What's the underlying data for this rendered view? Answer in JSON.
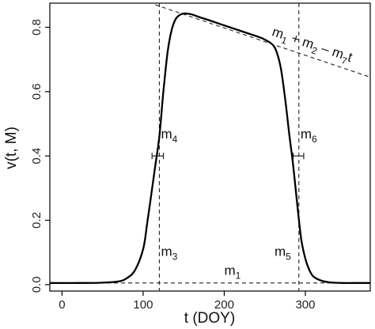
{
  "chart_data": {
    "type": "line",
    "xlabel": "t (DOY)",
    "ylabel": "v(t, M)",
    "xlim": [
      -15,
      380
    ],
    "ylim": [
      -0.02,
      0.875
    ],
    "x_ticks": [
      0,
      100,
      200,
      300
    ],
    "y_ticks": [
      0.0,
      0.2,
      0.4,
      0.6,
      0.8
    ],
    "grid": false,
    "series": [
      {
        "x": [
          -15,
          20,
          50,
          70,
          80,
          90,
          100,
          105,
          110,
          115,
          120,
          125,
          130,
          135,
          140,
          145,
          150,
          155,
          160,
          170,
          180,
          200,
          220,
          240,
          250,
          260,
          265,
          270,
          275,
          280,
          285,
          290,
          295,
          300,
          305,
          310,
          320,
          330,
          345,
          360,
          380
        ],
        "y": [
          0.005,
          0.005,
          0.006,
          0.01,
          0.02,
          0.045,
          0.11,
          0.19,
          0.28,
          0.37,
          0.46,
          0.6,
          0.72,
          0.79,
          0.825,
          0.838,
          0.843,
          0.842,
          0.84,
          0.831,
          0.823,
          0.806,
          0.789,
          0.772,
          0.762,
          0.745,
          0.72,
          0.67,
          0.58,
          0.47,
          0.37,
          0.25,
          0.14,
          0.08,
          0.045,
          0.025,
          0.012,
          0.007,
          0.005,
          0.005,
          0.005
        ]
      }
    ],
    "reference_lines": [
      {
        "kind": "horizontal",
        "y": 0.005,
        "style": "dashed"
      },
      {
        "kind": "vertical",
        "x": 120,
        "style": "dashed"
      },
      {
        "kind": "vertical",
        "x": 292,
        "style": "dashed"
      },
      {
        "kind": "line",
        "x1": 115,
        "y1": 0.87,
        "x2": 380,
        "y2": 0.645,
        "style": "dashed"
      }
    ],
    "error_bars": [
      {
        "y": 0.4,
        "x_low": 111,
        "x_high": 125
      },
      {
        "y": 0.4,
        "x_low": 285,
        "x_high": 298
      }
    ],
    "annotations": [
      {
        "id": "m1",
        "base": "m",
        "sub": "1",
        "x": 200,
        "y": 0.03
      },
      {
        "id": "m3",
        "base": "m",
        "sub": "3",
        "x": 122,
        "y": 0.09
      },
      {
        "id": "m4",
        "base": "m",
        "sub": "4",
        "x": 122,
        "y": 0.455
      },
      {
        "id": "m5",
        "base": "m",
        "sub": "5",
        "x": 262,
        "y": 0.09
      },
      {
        "id": "m6",
        "base": "m",
        "sub": "6",
        "x": 294,
        "y": 0.455
      }
    ],
    "slope_label": {
      "x": 258,
      "y": 0.775,
      "parts": [
        {
          "base": "m",
          "sub": "1"
        },
        {
          "op": " + "
        },
        {
          "base": "m",
          "sub": "2"
        },
        {
          "op": " – "
        },
        {
          "base": "m",
          "sub": "7"
        },
        {
          "op": "t"
        }
      ]
    }
  }
}
